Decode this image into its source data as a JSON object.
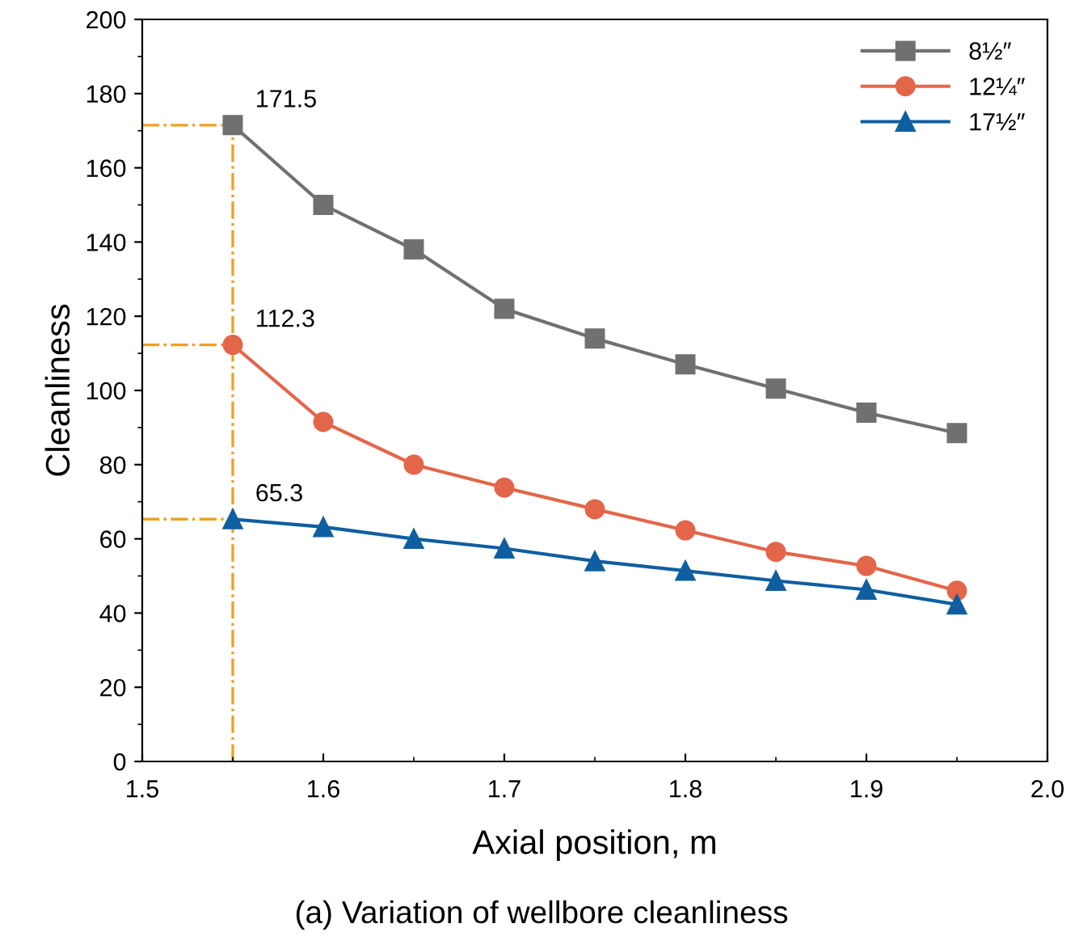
{
  "chart_data": {
    "type": "line",
    "xlabel": "Axial position, m",
    "ylabel": "Cleanliness",
    "x": [
      1.55,
      1.6,
      1.65,
      1.7,
      1.75,
      1.8,
      1.85,
      1.9,
      1.95
    ],
    "series": [
      {
        "name": "8½″",
        "color": "#707070",
        "marker": "square",
        "values": [
          171.5,
          150,
          138,
          122,
          114,
          107,
          100.5,
          94,
          88.5
        ],
        "value_labels": [
          "171.5",
          null,
          null,
          null,
          null,
          null,
          null,
          null,
          null
        ]
      },
      {
        "name": "12¼″",
        "color": "#e3664a",
        "marker": "circle",
        "values": [
          112.3,
          91.5,
          80,
          73.8,
          68,
          62.3,
          56.5,
          52.7,
          46
        ],
        "value_labels": [
          "112.3",
          null,
          null,
          null,
          null,
          null,
          null,
          null,
          null
        ]
      },
      {
        "name": "17½″",
        "color": "#0f5fa0",
        "marker": "triangle",
        "values": [
          65.3,
          63.2,
          60,
          57.4,
          54,
          51.4,
          48.7,
          46.3,
          42.3
        ],
        "value_labels": [
          "65.3",
          null,
          null,
          null,
          null,
          null,
          null,
          null,
          null
        ]
      }
    ],
    "xlim": [
      1.5,
      2.0
    ],
    "xticks": [
      {
        "value": 1.5,
        "label": "1.5"
      },
      1.6,
      1.7,
      1.8,
      1.9,
      {
        "value": 2.0,
        "label": "2.0"
      }
    ],
    "ylim": [
      0,
      200
    ],
    "yticks": [
      0,
      20,
      40,
      60,
      80,
      100,
      120,
      140,
      160,
      180,
      200
    ],
    "ref_lines": [
      {
        "axis": "x",
        "value": 1.55,
        "color": "#f0a020",
        "line_style": "dashdot"
      },
      {
        "axis": "y",
        "value": 171.5,
        "color": "#f0a020",
        "line_style": "dashdot"
      },
      {
        "axis": "y",
        "value": 112.3,
        "color": "#f0a020",
        "line_style": "dashdot"
      },
      {
        "axis": "y",
        "value": 65.3,
        "color": "#f0a020",
        "line_style": "dashdot"
      }
    ],
    "annotations": [
      "(a) Variation of wellbore cleanliness"
    ],
    "legend": "top right",
    "grid": false,
    "line_style": "solid"
  }
}
